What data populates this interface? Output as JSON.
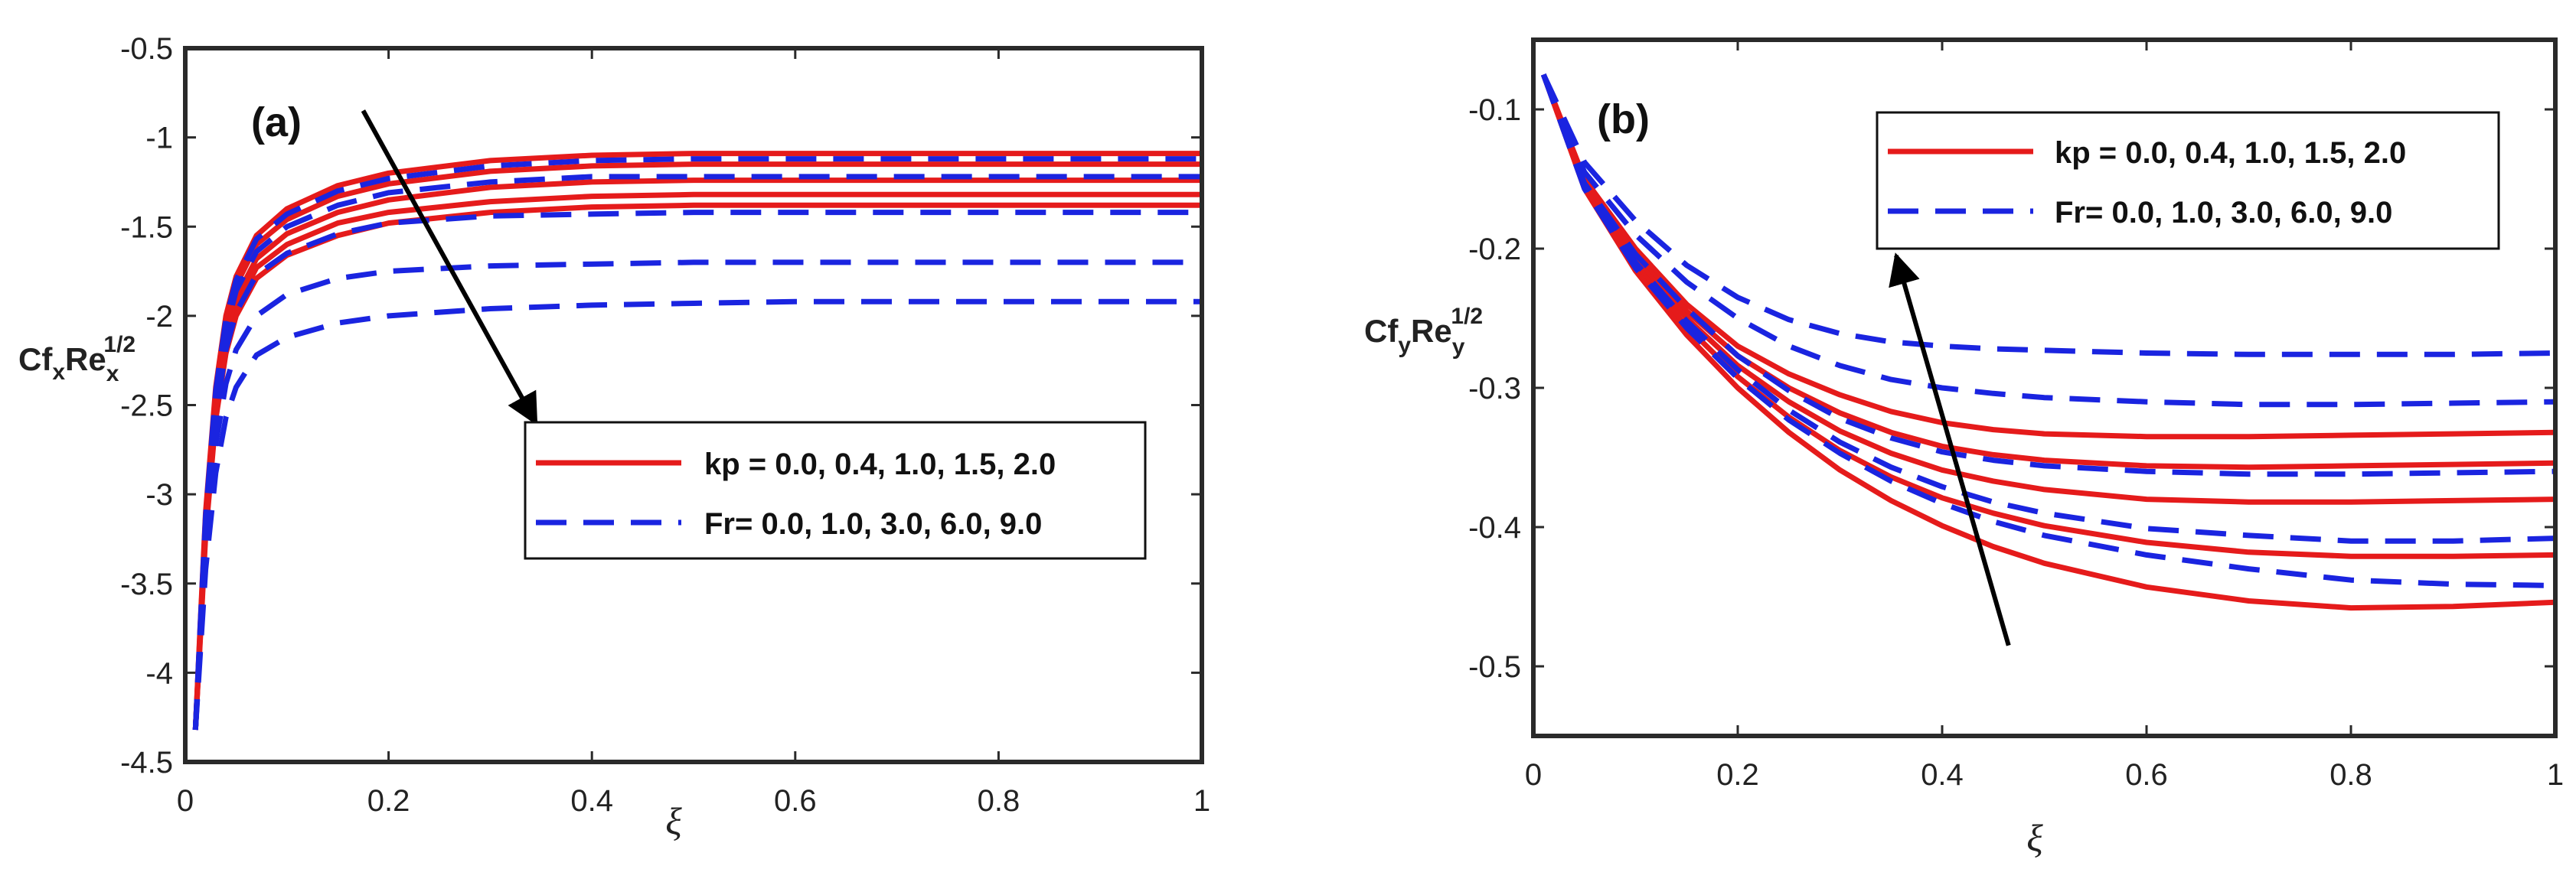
{
  "colors": {
    "kp": "#e51b1b",
    "fr": "#1a24e0",
    "axis": "#2a2a2a",
    "arrow": "#000000"
  },
  "chart_data": [
    {
      "type": "line",
      "panel_label": "(a)",
      "xlabel": "ξ",
      "ylabel": {
        "base1": "Cf",
        "sub1": "x",
        "base2": "Re",
        "sub2": "x",
        "sup": "1/2"
      },
      "xlim": [
        0,
        1
      ],
      "ylim": [
        -4.5,
        -0.5
      ],
      "xticks": [
        0,
        0.2,
        0.4,
        0.6,
        0.8,
        1
      ],
      "xtick_labels": [
        "0",
        "0.2",
        "0.4",
        "0.6",
        "0.8",
        "1"
      ],
      "yticks": [
        -0.5,
        -1,
        -1.5,
        -2,
        -2.5,
        -3,
        -3.5,
        -4,
        -4.5
      ],
      "ytick_labels": [
        "-0.5",
        "-1",
        "-1.5",
        "-2",
        "-2.5",
        "-3",
        "-3.5",
        "-4",
        "-4.5"
      ],
      "legend": {
        "position": "center-right",
        "entries": [
          {
            "label": "kp = 0.0, 0.4, 1.0, 1.5, 2.0",
            "style": "solid",
            "color": "#e51b1b"
          },
          {
            "label": "Fr= 0.0, 1.0, 3.0, 6.0, 9.0",
            "style": "dashed",
            "color": "#1a24e0"
          }
        ]
      },
      "arrow": {
        "from": [
          0.175,
          -0.85
        ],
        "to": [
          0.345,
          -2.6
        ]
      },
      "x": [
        0.01,
        0.015,
        0.02,
        0.03,
        0.04,
        0.05,
        0.07,
        0.1,
        0.15,
        0.2,
        0.3,
        0.4,
        0.5,
        0.6,
        0.7,
        0.8,
        0.9,
        1.0
      ],
      "series": [
        {
          "name": "kp = 0.0",
          "group": "kp",
          "values": [
            -4.32,
            -3.7,
            -3.1,
            -2.4,
            -2.0,
            -1.78,
            -1.55,
            -1.4,
            -1.27,
            -1.2,
            -1.13,
            -1.1,
            -1.09,
            -1.09,
            -1.09,
            -1.09,
            -1.09,
            -1.09
          ]
        },
        {
          "name": "kp = 0.4",
          "group": "kp",
          "values": [
            -4.32,
            -3.72,
            -3.13,
            -2.44,
            -2.05,
            -1.83,
            -1.6,
            -1.46,
            -1.33,
            -1.26,
            -1.19,
            -1.16,
            -1.15,
            -1.15,
            -1.15,
            -1.15,
            -1.15,
            -1.15
          ]
        },
        {
          "name": "kp = 1.0",
          "group": "kp",
          "values": [
            -4.32,
            -3.75,
            -3.17,
            -2.5,
            -2.11,
            -1.9,
            -1.68,
            -1.54,
            -1.42,
            -1.35,
            -1.28,
            -1.25,
            -1.24,
            -1.24,
            -1.24,
            -1.24,
            -1.24,
            -1.24
          ]
        },
        {
          "name": "kp = 1.5",
          "group": "kp",
          "values": [
            -4.32,
            -3.77,
            -3.2,
            -2.54,
            -2.16,
            -1.95,
            -1.73,
            -1.6,
            -1.48,
            -1.42,
            -1.36,
            -1.33,
            -1.32,
            -1.32,
            -1.32,
            -1.32,
            -1.32,
            -1.32
          ]
        },
        {
          "name": "kp = 2.0",
          "group": "kp",
          "values": [
            -4.32,
            -3.79,
            -3.23,
            -2.58,
            -2.21,
            -2.0,
            -1.79,
            -1.66,
            -1.55,
            -1.48,
            -1.42,
            -1.39,
            -1.38,
            -1.38,
            -1.38,
            -1.38,
            -1.38,
            -1.38
          ]
        },
        {
          "name": "Fr = 0.0",
          "group": "fr",
          "values": [
            -4.32,
            -3.71,
            -3.12,
            -2.42,
            -2.02,
            -1.8,
            -1.57,
            -1.43,
            -1.3,
            -1.23,
            -1.16,
            -1.13,
            -1.12,
            -1.12,
            -1.12,
            -1.12,
            -1.12,
            -1.12
          ]
        },
        {
          "name": "Fr = 1.0",
          "group": "fr",
          "values": [
            -4.32,
            -3.74,
            -3.15,
            -2.47,
            -2.08,
            -1.86,
            -1.64,
            -1.5,
            -1.38,
            -1.31,
            -1.25,
            -1.22,
            -1.22,
            -1.22,
            -1.22,
            -1.22,
            -1.22,
            -1.22
          ]
        },
        {
          "name": "Fr = 3.0",
          "group": "fr",
          "values": [
            -4.32,
            -3.78,
            -3.22,
            -2.56,
            -2.19,
            -1.98,
            -1.77,
            -1.65,
            -1.54,
            -1.48,
            -1.44,
            -1.43,
            -1.42,
            -1.42,
            -1.42,
            -1.42,
            -1.42,
            -1.42
          ]
        },
        {
          "name": "Fr = 6.0",
          "group": "fr",
          "values": [
            -4.32,
            -3.82,
            -3.32,
            -2.72,
            -2.38,
            -2.19,
            -2.0,
            -1.88,
            -1.79,
            -1.75,
            -1.72,
            -1.71,
            -1.7,
            -1.7,
            -1.7,
            -1.7,
            -1.7,
            -1.7
          ]
        },
        {
          "name": "Fr = 9.0",
          "group": "fr",
          "values": [
            -4.32,
            -3.87,
            -3.42,
            -2.88,
            -2.57,
            -2.4,
            -2.22,
            -2.12,
            -2.04,
            -2.0,
            -1.96,
            -1.94,
            -1.93,
            -1.92,
            -1.92,
            -1.92,
            -1.92,
            -1.92
          ]
        }
      ]
    },
    {
      "type": "line",
      "panel_label": "(b)",
      "xlabel": "ξ",
      "ylabel": {
        "base1": "Cf",
        "sub1": "y",
        "base2": "Re",
        "sub2": "y",
        "sup": "1/2"
      },
      "xlim": [
        0,
        1
      ],
      "ylim": [
        -0.55,
        -0.05
      ],
      "xticks": [
        0,
        0.2,
        0.4,
        0.6,
        0.8,
        1
      ],
      "xtick_labels": [
        "0",
        "0.2",
        "0.4",
        "0.6",
        "0.8",
        "1"
      ],
      "yticks": [
        -0.1,
        -0.2,
        -0.3,
        -0.4,
        -0.5
      ],
      "ytick_labels": [
        "-0.1",
        "-0.2",
        "-0.3",
        "-0.4",
        "-0.5"
      ],
      "legend": {
        "position": "top-right",
        "entries": [
          {
            "label": "kp = 0.0, 0.4, 1.0, 1.5, 2.0",
            "style": "solid",
            "color": "#e51b1b"
          },
          {
            "label": "Fr= 0.0, 1.0, 3.0, 6.0, 9.0",
            "style": "dashed",
            "color": "#1a24e0"
          }
        ]
      },
      "arrow": {
        "from": [
          0.465,
          -0.485
        ],
        "to": [
          0.355,
          -0.205
        ]
      },
      "x": [
        0.01,
        0.05,
        0.1,
        0.15,
        0.2,
        0.25,
        0.3,
        0.35,
        0.4,
        0.45,
        0.5,
        0.6,
        0.7,
        0.8,
        0.9,
        1.0
      ],
      "series": [
        {
          "name": "kp = 0.0",
          "group": "kp",
          "values": [
            -0.075,
            -0.15,
            -0.2,
            -0.24,
            -0.27,
            -0.29,
            -0.305,
            -0.317,
            -0.325,
            -0.33,
            -0.333,
            -0.335,
            -0.335,
            -0.334,
            -0.333,
            -0.332
          ]
        },
        {
          "name": "kp = 0.4",
          "group": "kp",
          "values": [
            -0.075,
            -0.152,
            -0.205,
            -0.245,
            -0.277,
            -0.3,
            -0.318,
            -0.332,
            -0.342,
            -0.348,
            -0.352,
            -0.356,
            -0.357,
            -0.356,
            -0.355,
            -0.354
          ]
        },
        {
          "name": "kp = 1.0",
          "group": "kp",
          "values": [
            -0.075,
            -0.153,
            -0.208,
            -0.25,
            -0.284,
            -0.31,
            -0.331,
            -0.347,
            -0.359,
            -0.367,
            -0.373,
            -0.38,
            -0.382,
            -0.382,
            -0.381,
            -0.38
          ]
        },
        {
          "name": "kp = 1.5",
          "group": "kp",
          "values": [
            -0.075,
            -0.155,
            -0.212,
            -0.256,
            -0.292,
            -0.321,
            -0.345,
            -0.364,
            -0.379,
            -0.39,
            -0.399,
            -0.411,
            -0.418,
            -0.421,
            -0.421,
            -0.42
          ]
        },
        {
          "name": "kp = 2.0",
          "group": "kp",
          "values": [
            -0.075,
            -0.157,
            -0.216,
            -0.262,
            -0.3,
            -0.332,
            -0.359,
            -0.381,
            -0.399,
            -0.414,
            -0.426,
            -0.443,
            -0.453,
            -0.458,
            -0.457,
            -0.454
          ]
        },
        {
          "name": "Fr = 0.0",
          "group": "fr",
          "values": [
            -0.075,
            -0.157,
            -0.214,
            -0.257,
            -0.293,
            -0.323,
            -0.347,
            -0.367,
            -0.383,
            -0.396,
            -0.406,
            -0.42,
            -0.43,
            -0.438,
            -0.441,
            -0.442
          ]
        },
        {
          "name": "Fr = 1.0",
          "group": "fr",
          "values": [
            -0.075,
            -0.155,
            -0.21,
            -0.252,
            -0.287,
            -0.316,
            -0.339,
            -0.357,
            -0.371,
            -0.382,
            -0.39,
            -0.401,
            -0.406,
            -0.41,
            -0.41,
            -0.408
          ]
        },
        {
          "name": "Fr = 3.0",
          "group": "fr",
          "values": [
            -0.075,
            -0.153,
            -0.204,
            -0.243,
            -0.277,
            -0.302,
            -0.322,
            -0.336,
            -0.346,
            -0.352,
            -0.356,
            -0.36,
            -0.362,
            -0.362,
            -0.361,
            -0.36
          ]
        },
        {
          "name": "Fr = 6.0",
          "group": "fr",
          "values": [
            -0.075,
            -0.145,
            -0.19,
            -0.224,
            -0.25,
            -0.27,
            -0.284,
            -0.294,
            -0.3,
            -0.304,
            -0.307,
            -0.31,
            -0.312,
            -0.312,
            -0.311,
            -0.31
          ]
        },
        {
          "name": "Fr = 9.0",
          "group": "fr",
          "values": [
            -0.075,
            -0.138,
            -0.18,
            -0.212,
            -0.235,
            -0.251,
            -0.261,
            -0.267,
            -0.27,
            -0.272,
            -0.273,
            -0.275,
            -0.276,
            -0.276,
            -0.276,
            -0.275
          ]
        }
      ]
    }
  ]
}
